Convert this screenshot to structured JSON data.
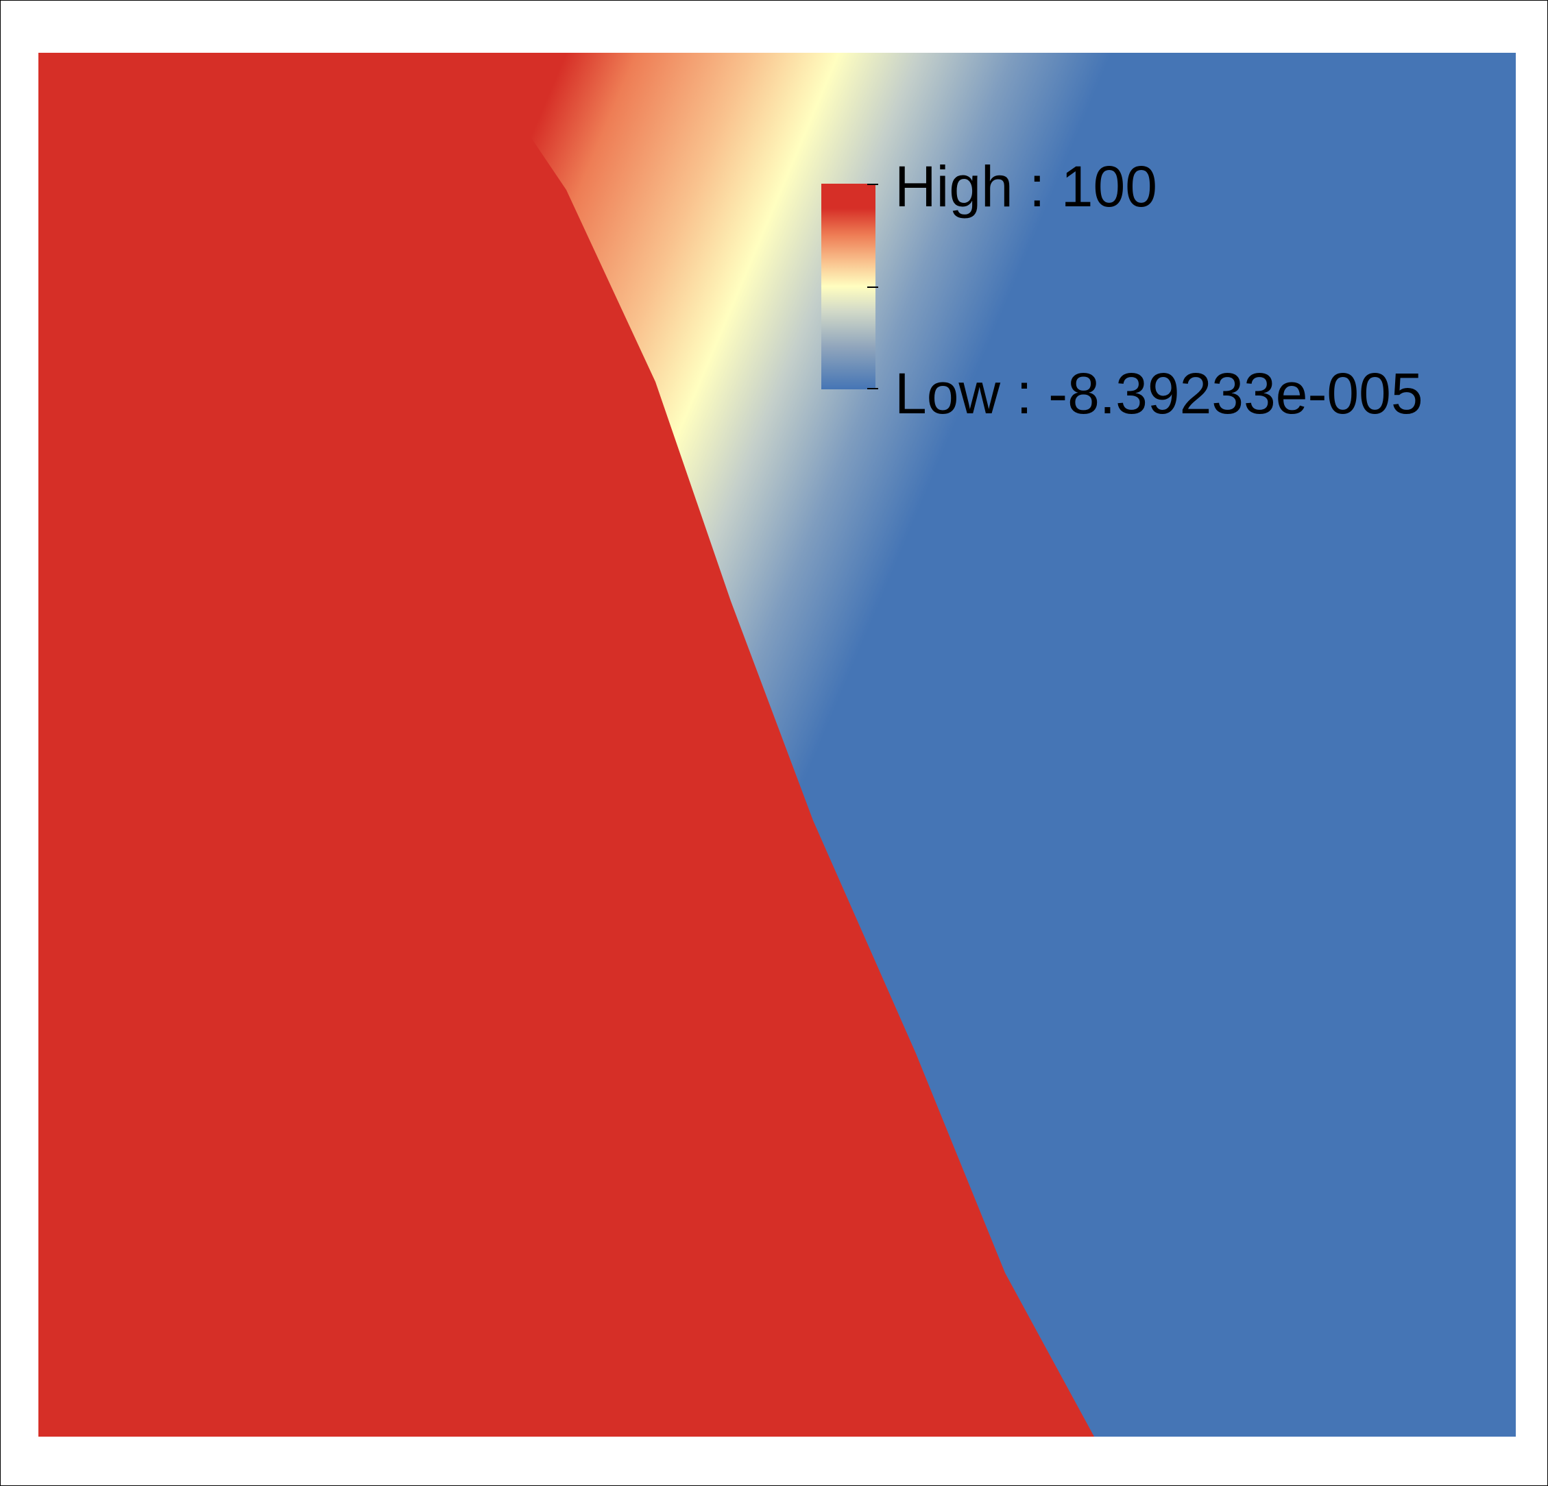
{
  "legend": {
    "high_label": "High : 100",
    "low_label": "Low : -8.39233e-005"
  },
  "raster": {
    "high_value": 100,
    "low_value": -8.39233e-05
  },
  "colors": {
    "high": "#d62f27",
    "mid_high": "#f4a06f",
    "mid": "#fffec0",
    "mid_low": "#93a8bb",
    "low": "#4575b5",
    "frame": "#000000",
    "background": "#ffffff"
  }
}
